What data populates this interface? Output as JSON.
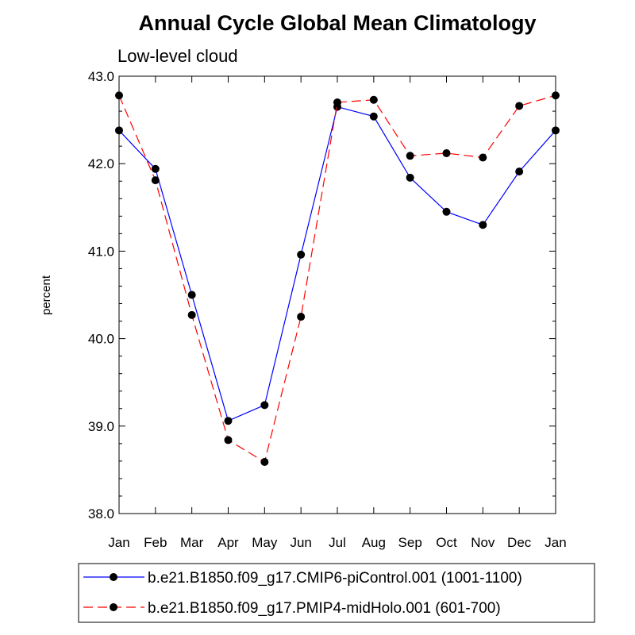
{
  "chart_data": {
    "type": "line",
    "title": "Annual Cycle Global Mean Climatology",
    "subtitle": "Low-level cloud",
    "ylabel": "percent",
    "xlabel": "",
    "categories": [
      "Jan",
      "Feb",
      "Mar",
      "Apr",
      "May",
      "Jun",
      "Jul",
      "Aug",
      "Sep",
      "Oct",
      "Nov",
      "Dec",
      "Jan"
    ],
    "ylim": [
      38.0,
      43.0
    ],
    "yticks": [
      "38.0",
      "39.0",
      "40.0",
      "41.0",
      "42.0",
      "43.0"
    ],
    "legend_position": "bottom",
    "grid": false,
    "series": [
      {
        "name": "b.e21.B1850.f09_g17.CMIP6-piControl.001 (1001-1100)",
        "color": "#0000ff",
        "line_style": "solid",
        "values": [
          42.38,
          41.94,
          40.5,
          39.06,
          39.24,
          40.96,
          42.65,
          42.54,
          41.84,
          41.45,
          41.3,
          41.91,
          42.38
        ]
      },
      {
        "name": "b.e21.B1850.f09_g17.PMIP4-midHolo.001 (601-700)",
        "color": "#ff0000",
        "line_style": "dashed",
        "values": [
          42.78,
          41.81,
          40.27,
          38.84,
          38.59,
          40.25,
          42.7,
          42.73,
          42.09,
          42.12,
          42.07,
          42.66,
          42.78
        ]
      }
    ]
  }
}
